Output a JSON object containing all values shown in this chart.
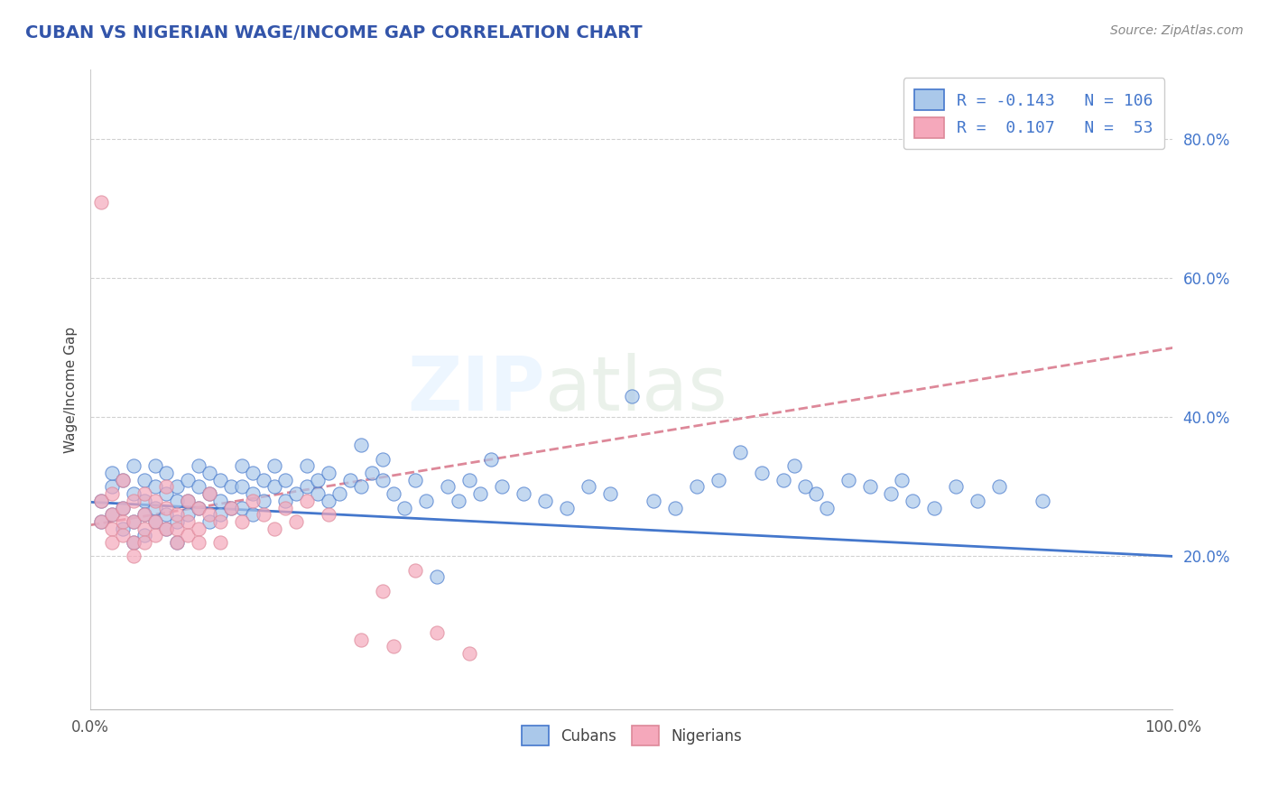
{
  "title": "CUBAN VS NIGERIAN WAGE/INCOME GAP CORRELATION CHART",
  "title_color": "#3355aa",
  "source_text": "Source: ZipAtlas.com",
  "ylabel": "Wage/Income Gap",
  "x_min": 0.0,
  "x_max": 1.0,
  "y_min": -0.02,
  "y_max": 0.9,
  "y_ticks": [
    0.2,
    0.4,
    0.6,
    0.8
  ],
  "y_tick_labels": [
    "20.0%",
    "40.0%",
    "60.0%",
    "80.0%"
  ],
  "cuban_color": "#aac8ea",
  "nigerian_color": "#f5a8bb",
  "cuban_line_color": "#4477cc",
  "nigerian_line_color": "#dd8899",
  "legend_cuban_label": "Cubans",
  "legend_nigerian_label": "Nigerians",
  "R_cuban": -0.143,
  "N_cuban": 106,
  "R_nigerian": 0.107,
  "N_nigerian": 53,
  "background_color": "#ffffff",
  "grid_color": "#cccccc",
  "cuban_trend_x0": 0.0,
  "cuban_trend_y0": 0.278,
  "cuban_trend_x1": 1.0,
  "cuban_trend_y1": 0.2,
  "nigerian_trend_x0": 0.0,
  "nigerian_trend_y0": 0.245,
  "nigerian_trend_x1": 1.0,
  "nigerian_trend_y1": 0.5,
  "cuban_scatter_x": [
    0.01,
    0.01,
    0.02,
    0.02,
    0.02,
    0.03,
    0.03,
    0.03,
    0.04,
    0.04,
    0.04,
    0.04,
    0.05,
    0.05,
    0.05,
    0.05,
    0.06,
    0.06,
    0.06,
    0.06,
    0.07,
    0.07,
    0.07,
    0.07,
    0.08,
    0.08,
    0.08,
    0.08,
    0.09,
    0.09,
    0.09,
    0.1,
    0.1,
    0.1,
    0.11,
    0.11,
    0.11,
    0.12,
    0.12,
    0.12,
    0.13,
    0.13,
    0.14,
    0.14,
    0.14,
    0.15,
    0.15,
    0.15,
    0.16,
    0.16,
    0.17,
    0.17,
    0.18,
    0.18,
    0.19,
    0.2,
    0.2,
    0.21,
    0.21,
    0.22,
    0.22,
    0.23,
    0.24,
    0.25,
    0.25,
    0.26,
    0.27,
    0.27,
    0.28,
    0.29,
    0.3,
    0.31,
    0.32,
    0.33,
    0.34,
    0.35,
    0.36,
    0.37,
    0.38,
    0.4,
    0.42,
    0.44,
    0.46,
    0.48,
    0.5,
    0.52,
    0.54,
    0.56,
    0.58,
    0.6,
    0.62,
    0.64,
    0.65,
    0.66,
    0.67,
    0.68,
    0.7,
    0.72,
    0.74,
    0.75,
    0.76,
    0.78,
    0.8,
    0.82,
    0.84,
    0.88
  ],
  "cuban_scatter_y": [
    0.28,
    0.25,
    0.3,
    0.26,
    0.32,
    0.27,
    0.24,
    0.31,
    0.29,
    0.25,
    0.33,
    0.22,
    0.28,
    0.26,
    0.31,
    0.23,
    0.3,
    0.27,
    0.25,
    0.33,
    0.29,
    0.26,
    0.32,
    0.24,
    0.3,
    0.28,
    0.25,
    0.22,
    0.31,
    0.28,
    0.26,
    0.33,
    0.3,
    0.27,
    0.32,
    0.29,
    0.25,
    0.31,
    0.28,
    0.26,
    0.3,
    0.27,
    0.33,
    0.3,
    0.27,
    0.32,
    0.29,
    0.26,
    0.31,
    0.28,
    0.33,
    0.3,
    0.28,
    0.31,
    0.29,
    0.3,
    0.33,
    0.29,
    0.31,
    0.28,
    0.32,
    0.29,
    0.31,
    0.36,
    0.3,
    0.32,
    0.31,
    0.34,
    0.29,
    0.27,
    0.31,
    0.28,
    0.17,
    0.3,
    0.28,
    0.31,
    0.29,
    0.34,
    0.3,
    0.29,
    0.28,
    0.27,
    0.3,
    0.29,
    0.43,
    0.28,
    0.27,
    0.3,
    0.31,
    0.35,
    0.32,
    0.31,
    0.33,
    0.3,
    0.29,
    0.27,
    0.31,
    0.3,
    0.29,
    0.31,
    0.28,
    0.27,
    0.3,
    0.28,
    0.3,
    0.28
  ],
  "nigerian_scatter_x": [
    0.01,
    0.01,
    0.01,
    0.02,
    0.02,
    0.02,
    0.02,
    0.03,
    0.03,
    0.03,
    0.03,
    0.04,
    0.04,
    0.04,
    0.04,
    0.05,
    0.05,
    0.05,
    0.05,
    0.06,
    0.06,
    0.06,
    0.07,
    0.07,
    0.07,
    0.08,
    0.08,
    0.08,
    0.09,
    0.09,
    0.09,
    0.1,
    0.1,
    0.1,
    0.11,
    0.11,
    0.12,
    0.12,
    0.13,
    0.14,
    0.15,
    0.16,
    0.17,
    0.18,
    0.19,
    0.2,
    0.22,
    0.25,
    0.27,
    0.28,
    0.3,
    0.32,
    0.35
  ],
  "nigerian_scatter_y": [
    0.28,
    0.25,
    0.71,
    0.29,
    0.26,
    0.24,
    0.22,
    0.27,
    0.31,
    0.25,
    0.23,
    0.28,
    0.25,
    0.22,
    0.2,
    0.26,
    0.29,
    0.24,
    0.22,
    0.28,
    0.25,
    0.23,
    0.27,
    0.3,
    0.24,
    0.26,
    0.24,
    0.22,
    0.28,
    0.25,
    0.23,
    0.27,
    0.24,
    0.22,
    0.26,
    0.29,
    0.25,
    0.22,
    0.27,
    0.25,
    0.28,
    0.26,
    0.24,
    0.27,
    0.25,
    0.28,
    0.26,
    0.08,
    0.15,
    0.07,
    0.18,
    0.09,
    0.06
  ]
}
